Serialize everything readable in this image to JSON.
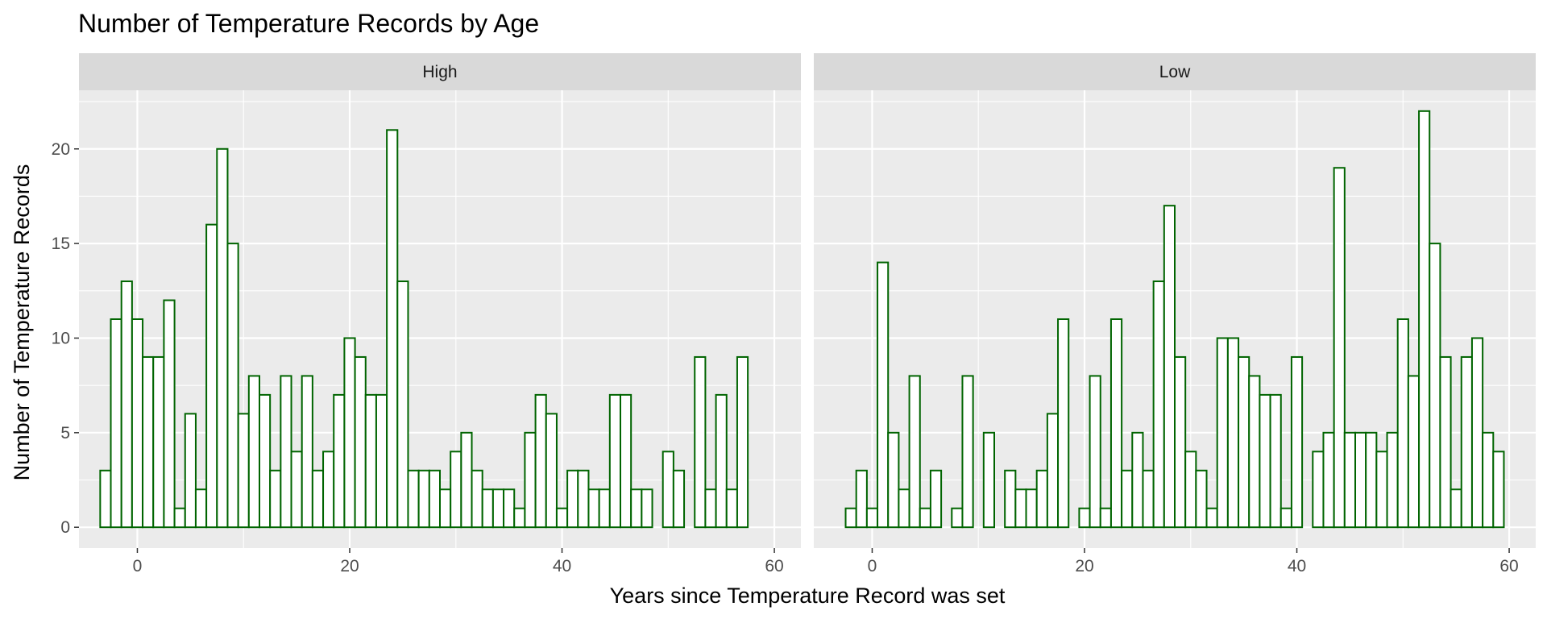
{
  "chart_data": {
    "type": "bar",
    "title": "Number of Temperature Records by Age",
    "xlabel": "Years since Temperature Record was set",
    "ylabel": "Number of Temperature Records",
    "xlim": [
      -5.5,
      62.5
    ],
    "ylim": [
      -1.1,
      23.1
    ],
    "x_ticks": [
      0,
      20,
      40,
      60
    ],
    "y_ticks": [
      0,
      5,
      10,
      15,
      20
    ],
    "grid": true,
    "bar_outline_color": "#006400",
    "bar_fill_color": "#ffffff",
    "panel_background": "#ebebeb",
    "strip_background": "#d9d9d9",
    "panels": [
      {
        "label": "High",
        "bin_start": -3,
        "values": [
          3,
          11,
          13,
          11,
          9,
          9,
          12,
          1,
          6,
          2,
          16,
          20,
          15,
          6,
          8,
          7,
          3,
          8,
          4,
          8,
          3,
          4,
          7,
          10,
          9,
          7,
          7,
          21,
          13,
          3,
          3,
          3,
          2,
          4,
          5,
          3,
          2,
          2,
          2,
          1,
          5,
          7,
          6,
          1,
          3,
          3,
          2,
          2,
          7,
          7,
          2,
          2,
          0,
          4,
          3,
          0,
          9,
          2,
          7,
          2,
          9,
          0
        ]
      },
      {
        "label": "Low",
        "bin_start": -3,
        "values": [
          0,
          1,
          3,
          1,
          14,
          5,
          2,
          8,
          1,
          3,
          0,
          1,
          8,
          0,
          5,
          0,
          3,
          2,
          2,
          3,
          6,
          11,
          0,
          1,
          8,
          1,
          11,
          3,
          5,
          3,
          13,
          17,
          9,
          4,
          3,
          1,
          10,
          10,
          9,
          8,
          7,
          7,
          1,
          9,
          0,
          4,
          5,
          19,
          5,
          5,
          5,
          4,
          5,
          11,
          8,
          22,
          15,
          9,
          2,
          9,
          10,
          5,
          4
        ]
      }
    ]
  }
}
